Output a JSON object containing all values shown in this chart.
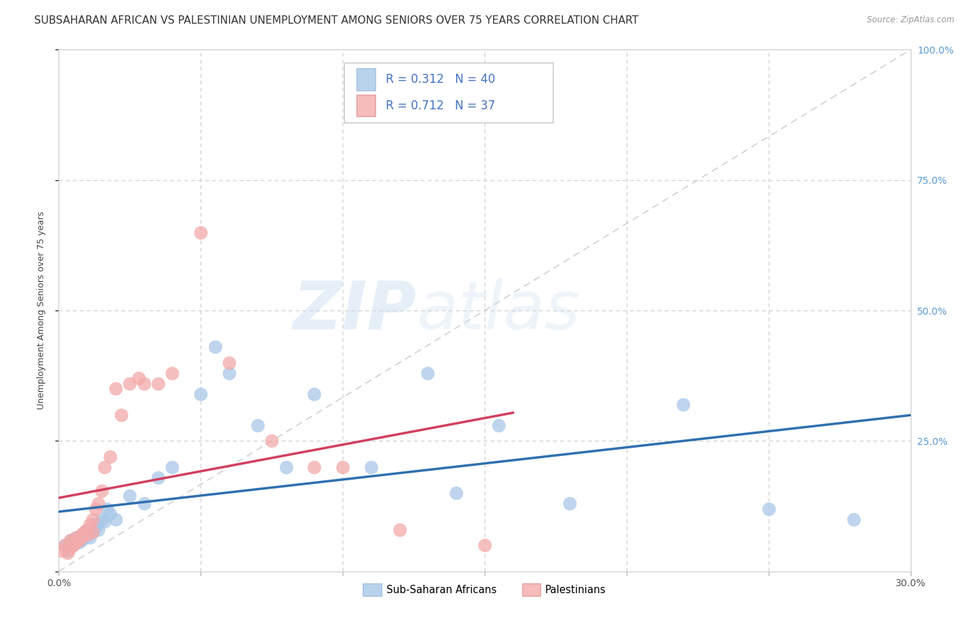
{
  "title": "SUBSAHARAN AFRICAN VS PALESTINIAN UNEMPLOYMENT AMONG SENIORS OVER 75 YEARS CORRELATION CHART",
  "source": "Source: ZipAtlas.com",
  "ylabel": "Unemployment Among Seniors over 75 years",
  "xlim": [
    0.0,
    0.3
  ],
  "ylim": [
    0.0,
    1.0
  ],
  "legend_label1": "Sub-Saharan Africans",
  "legend_label2": "Palestinians",
  "R1": "0.312",
  "N1": "40",
  "R2": "0.712",
  "N2": "37",
  "blue_color": "#a8c8e8",
  "pink_color": "#f4aaaa",
  "blue_line_color": "#3070b0",
  "pink_line_color": "#d04060",
  "ref_line_color": "#cccccc",
  "tick_color_right": "#5b9bd5",
  "title_fontsize": 11,
  "axis_label_fontsize": 9,
  "tick_fontsize": 10,
  "background_color": "#ffffff",
  "watermark": "ZIPatlas",
  "blue_scatter_x": [
    0.002,
    0.003,
    0.004,
    0.005,
    0.005,
    0.006,
    0.007,
    0.008,
    0.008,
    0.009,
    0.01,
    0.01,
    0.011,
    0.012,
    0.013,
    0.013,
    0.014,
    0.015,
    0.016,
    0.017,
    0.018,
    0.02,
    0.025,
    0.03,
    0.035,
    0.04,
    0.05,
    0.055,
    0.06,
    0.07,
    0.08,
    0.09,
    0.11,
    0.13,
    0.14,
    0.155,
    0.18,
    0.22,
    0.25,
    0.28
  ],
  "blue_scatter_y": [
    0.05,
    0.04,
    0.06,
    0.05,
    0.055,
    0.065,
    0.055,
    0.06,
    0.07,
    0.065,
    0.07,
    0.08,
    0.065,
    0.075,
    0.085,
    0.09,
    0.08,
    0.1,
    0.095,
    0.12,
    0.11,
    0.1,
    0.145,
    0.13,
    0.18,
    0.2,
    0.34,
    0.43,
    0.38,
    0.28,
    0.2,
    0.34,
    0.2,
    0.38,
    0.15,
    0.28,
    0.13,
    0.32,
    0.12,
    0.1
  ],
  "pink_scatter_x": [
    0.001,
    0.002,
    0.003,
    0.004,
    0.004,
    0.005,
    0.005,
    0.006,
    0.006,
    0.007,
    0.008,
    0.008,
    0.009,
    0.01,
    0.01,
    0.011,
    0.012,
    0.012,
    0.013,
    0.014,
    0.015,
    0.016,
    0.018,
    0.02,
    0.022,
    0.025,
    0.028,
    0.03,
    0.035,
    0.04,
    0.05,
    0.06,
    0.075,
    0.09,
    0.1,
    0.12,
    0.15
  ],
  "pink_scatter_y": [
    0.04,
    0.05,
    0.035,
    0.045,
    0.06,
    0.05,
    0.055,
    0.055,
    0.065,
    0.06,
    0.065,
    0.07,
    0.075,
    0.07,
    0.08,
    0.09,
    0.075,
    0.1,
    0.12,
    0.13,
    0.155,
    0.2,
    0.22,
    0.35,
    0.3,
    0.36,
    0.37,
    0.36,
    0.36,
    0.38,
    0.65,
    0.4,
    0.25,
    0.2,
    0.2,
    0.08,
    0.05
  ]
}
